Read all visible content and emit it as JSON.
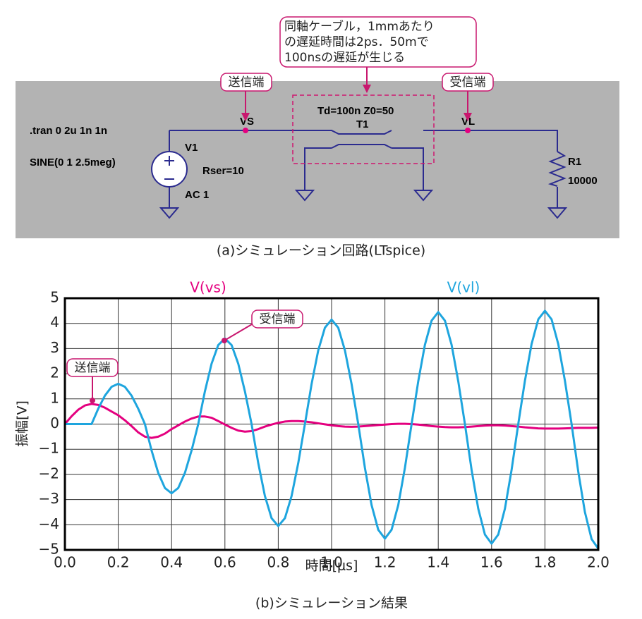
{
  "circuit": {
    "directive": ".tran 0 2u 1n 1n",
    "source": "SINE(0 1 2.5meg)",
    "source_name": "V1",
    "source_rser": "Rser=10",
    "source_ac": "AC 1",
    "node_send": "VS",
    "node_recv": "VL",
    "tline_params": "Td=100n Z0=50",
    "tline_name": "T1",
    "load_name": "R1",
    "load_value": "10000",
    "callout_send": "送信端",
    "callout_recv": "受信端",
    "note": [
      "同軸ケーブル，1mmあたり",
      "の遅延時間は2ps．50mで",
      "100nsの遅延が生じる"
    ],
    "caption": "(a)シミュレーション回路(LTspice)"
  },
  "chart_data": {
    "type": "line",
    "caption": "(b)シミュレーション結果",
    "x_label": "時間[μs]",
    "y_label": "振幅[V]",
    "xlim": [
      0,
      2
    ],
    "ylim": [
      -5,
      5
    ],
    "xticks": [
      {
        "value": 0,
        "label": "0.0"
      },
      0.2,
      0.4,
      0.6,
      0.8,
      {
        "value": 1,
        "label": "1.0"
      },
      1.2,
      1.4,
      1.6,
      1.8,
      {
        "value": 2,
        "label": "2.0"
      }
    ],
    "yticks": [
      5,
      4,
      3,
      2,
      1,
      0,
      {
        "value": -1,
        "label": "−1"
      },
      {
        "value": -2,
        "label": "−2"
      },
      {
        "value": -3,
        "label": "−3"
      },
      {
        "value": -4,
        "label": "−4"
      },
      {
        "value": -5,
        "label": "−5"
      }
    ],
    "grid": true,
    "annotations": [
      {
        "text": "送信端"
      },
      {
        "text": "受信端"
      }
    ],
    "x": [
      0,
      0.025,
      0.05,
      0.075,
      0.1,
      0.125,
      0.15,
      0.175,
      0.2,
      0.225,
      0.25,
      0.275,
      0.3,
      0.325,
      0.35,
      0.375,
      0.4,
      0.425,
      0.45,
      0.475,
      0.5,
      0.525,
      0.55,
      0.575,
      0.6,
      0.625,
      0.65,
      0.675,
      0.7,
      0.725,
      0.75,
      0.775,
      0.8,
      0.825,
      0.85,
      0.875,
      0.9,
      0.925,
      0.95,
      0.975,
      1,
      1.025,
      1.05,
      1.075,
      1.1,
      1.125,
      1.15,
      1.175,
      1.2,
      1.225,
      1.25,
      1.275,
      1.3,
      1.325,
      1.35,
      1.375,
      1.4,
      1.425,
      1.45,
      1.475,
      1.5,
      1.525,
      1.55,
      1.575,
      1.6,
      1.625,
      1.65,
      1.675,
      1.7,
      1.725,
      1.75,
      1.775,
      1.8,
      1.825,
      1.85,
      1.875,
      1.9,
      1.925,
      1.95,
      1.975,
      2
    ],
    "series": [
      {
        "name": "V(vs)",
        "color": "#e4007f",
        "values": [
          0,
          0.31,
          0.57,
          0.74,
          0.8,
          0.76,
          0.65,
          0.5,
          0.35,
          0.15,
          -0.08,
          -0.33,
          -0.5,
          -0.55,
          -0.5,
          -0.38,
          -0.2,
          -0.05,
          0.1,
          0.22,
          0.3,
          0.3,
          0.25,
          0.12,
          -0.02,
          -0.15,
          -0.26,
          -0.3,
          -0.28,
          -0.2,
          -0.1,
          -0.02,
          0.05,
          0.1,
          0.12,
          0.12,
          0.1,
          0.07,
          0.03,
          -0.01,
          -0.05,
          -0.08,
          -0.1,
          -0.11,
          -0.1,
          -0.08,
          -0.06,
          -0.04,
          -0.02,
          0,
          0.01,
          0.01,
          0,
          -0.02,
          -0.05,
          -0.08,
          -0.1,
          -0.12,
          -0.13,
          -0.13,
          -0.12,
          -0.1,
          -0.08,
          -0.06,
          -0.05,
          -0.05,
          -0.06,
          -0.08,
          -0.1,
          -0.13,
          -0.15,
          -0.17,
          -0.18,
          -0.18,
          -0.18,
          -0.17,
          -0.16,
          -0.15,
          -0.15,
          -0.15,
          -0.14
        ]
      },
      {
        "name": "V(vl)",
        "color": "#1ea5de",
        "values": [
          0,
          0,
          0,
          0,
          0,
          0.61,
          1.13,
          1.48,
          1.6,
          1.48,
          1.13,
          0.61,
          0,
          -1.05,
          -1.94,
          -2.54,
          -2.75,
          -2.54,
          -1.94,
          -1.05,
          0,
          1.3,
          2.4,
          3.14,
          3.4,
          3.14,
          2.4,
          1.3,
          0,
          -1.55,
          -2.86,
          -3.74,
          -4.05,
          -3.74,
          -2.86,
          -1.55,
          0,
          1.59,
          2.93,
          3.83,
          4.15,
          3.83,
          2.93,
          1.59,
          0,
          -1.74,
          -3.22,
          -4.2,
          -4.55,
          -4.2,
          -3.22,
          -1.74,
          0,
          1.7,
          3.15,
          4.11,
          4.45,
          4.11,
          3.15,
          1.7,
          0,
          -1.82,
          -3.36,
          -4.39,
          -4.75,
          -4.39,
          -3.36,
          -1.82,
          0,
          1.72,
          3.18,
          4.16,
          4.5,
          4.16,
          3.18,
          1.72,
          0,
          -1.89,
          -3.5,
          -4.57,
          -4.95
        ]
      }
    ]
  }
}
